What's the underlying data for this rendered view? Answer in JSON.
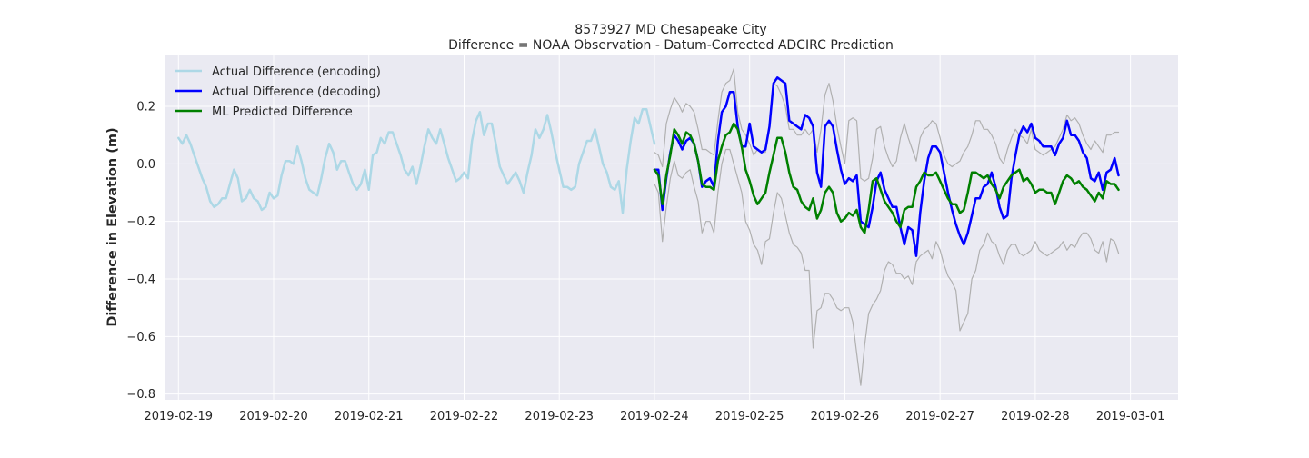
{
  "chart_data": {
    "type": "line",
    "title": "8573927 MD Chesapeake City",
    "subtitle": "Difference = NOAA Observation - Datum-Corrected ADCIRC Prediction",
    "xlabel": "",
    "ylabel": "Difference in Elevation (m)",
    "x_ticks": [
      "2019-02-19",
      "2019-02-20",
      "2019-02-21",
      "2019-02-22",
      "2019-02-23",
      "2019-02-24",
      "2019-02-25",
      "2019-02-26",
      "2019-02-27",
      "2019-02-28",
      "2019-03-01"
    ],
    "y_ticks": [
      "−0.8",
      "−0.6",
      "−0.4",
      "−0.2",
      "0.0",
      "0.2"
    ],
    "y_tick_values": [
      -0.8,
      -0.6,
      -0.4,
      -0.2,
      0.0,
      0.2
    ],
    "xlim": [
      "2019-02-18T20:30",
      "2019-03-01T12:00"
    ],
    "ylim": [
      -0.82,
      0.38
    ],
    "grid": true,
    "legend_position": "top-left",
    "colors": {
      "background": "#eaeaf2",
      "grid": "#ffffff",
      "encoding": "#add8e6",
      "decoding": "#0000ff",
      "predicted": "#008000",
      "bounds": "#b0b0b0"
    },
    "series": [
      {
        "name": "Actual Difference (encoding)",
        "color": "#add8e6",
        "x_start": "2019-02-19T00:00",
        "x_step_hours": 1,
        "values": [
          0.09,
          0.07,
          0.1,
          0.07,
          0.03,
          -0.01,
          -0.05,
          -0.08,
          -0.13,
          -0.15,
          -0.14,
          -0.12,
          -0.12,
          -0.07,
          -0.02,
          -0.05,
          -0.13,
          -0.12,
          -0.09,
          -0.12,
          -0.13,
          -0.16,
          -0.15,
          -0.1,
          -0.12,
          -0.11,
          -0.04,
          0.01,
          0.01,
          0.0,
          0.06,
          0.01,
          -0.05,
          -0.09,
          -0.1,
          -0.11,
          -0.05,
          0.02,
          0.07,
          0.04,
          -0.02,
          0.01,
          0.01,
          -0.03,
          -0.07,
          -0.09,
          -0.07,
          -0.02,
          -0.09,
          0.03,
          0.04,
          0.09,
          0.07,
          0.11,
          0.11,
          0.07,
          0.03,
          -0.02,
          -0.04,
          -0.01,
          -0.07,
          -0.01,
          0.06,
          0.12,
          0.09,
          0.07,
          0.12,
          0.07,
          0.02,
          -0.02,
          -0.06,
          -0.05,
          -0.03,
          -0.05,
          0.08,
          0.15,
          0.18,
          0.1,
          0.14,
          0.14,
          0.07,
          -0.01,
          -0.04,
          -0.07,
          -0.05,
          -0.03,
          -0.06,
          -0.1,
          -0.03,
          0.03,
          0.12,
          0.09,
          0.12,
          0.17,
          0.11,
          0.04,
          -0.02,
          -0.08,
          -0.08,
          -0.09,
          -0.08,
          0.0,
          0.04,
          0.08,
          0.08,
          0.12,
          0.06,
          0.0,
          -0.03,
          -0.08,
          -0.09,
          -0.06,
          -0.17,
          -0.02,
          0.08,
          0.16,
          0.14,
          0.19,
          0.19,
          0.13,
          0.07
        ]
      },
      {
        "name": "Actual Difference (decoding)",
        "color": "#0000ff",
        "x_start": "2019-02-24T00:00",
        "x_step_hours": 1,
        "values": [
          -0.02,
          -0.02,
          -0.16,
          -0.05,
          0.04,
          0.1,
          0.08,
          0.05,
          0.08,
          0.09,
          0.07,
          0.01,
          -0.08,
          -0.06,
          -0.05,
          -0.08,
          0.08,
          0.18,
          0.2,
          0.25,
          0.25,
          0.13,
          0.06,
          0.06,
          0.14,
          0.06,
          0.05,
          0.04,
          0.05,
          0.13,
          0.28,
          0.3,
          0.29,
          0.28,
          0.15,
          0.14,
          0.13,
          0.12,
          0.17,
          0.16,
          0.13,
          -0.03,
          -0.08,
          0.13,
          0.15,
          0.13,
          0.05,
          -0.02,
          -0.07,
          -0.05,
          -0.06,
          -0.04,
          -0.2,
          -0.21,
          -0.22,
          -0.15,
          -0.06,
          -0.03,
          -0.09,
          -0.12,
          -0.15,
          -0.15,
          -0.22,
          -0.28,
          -0.22,
          -0.23,
          -0.32,
          -0.17,
          -0.06,
          0.02,
          0.06,
          0.06,
          0.04,
          -0.03,
          -0.1,
          -0.16,
          -0.21,
          -0.25,
          -0.28,
          -0.24,
          -0.18,
          -0.12,
          -0.12,
          -0.08,
          -0.07,
          -0.03,
          -0.08,
          -0.15,
          -0.19,
          -0.18,
          -0.05,
          0.03,
          0.1,
          0.13,
          0.11,
          0.14,
          0.09,
          0.08,
          0.06,
          0.06,
          0.06,
          0.03,
          0.07,
          0.09,
          0.15,
          0.1,
          0.1,
          0.08,
          0.04,
          0.02,
          -0.05,
          -0.06,
          -0.03,
          -0.09,
          -0.03,
          -0.02,
          0.02,
          -0.04
        ]
      },
      {
        "name": "ML Predicted Difference",
        "color": "#008000",
        "x_start": "2019-02-24T00:00",
        "x_step_hours": 1,
        "values": [
          -0.02,
          -0.04,
          -0.14,
          -0.04,
          0.03,
          0.12,
          0.1,
          0.07,
          0.11,
          0.1,
          0.07,
          0.01,
          -0.07,
          -0.08,
          -0.08,
          -0.09,
          0.01,
          0.06,
          0.1,
          0.11,
          0.14,
          0.12,
          0.06,
          -0.02,
          -0.06,
          -0.11,
          -0.14,
          -0.12,
          -0.1,
          -0.03,
          0.03,
          0.09,
          0.09,
          0.04,
          -0.03,
          -0.08,
          -0.09,
          -0.13,
          -0.15,
          -0.16,
          -0.12,
          -0.19,
          -0.16,
          -0.1,
          -0.08,
          -0.1,
          -0.17,
          -0.2,
          -0.19,
          -0.17,
          -0.18,
          -0.16,
          -0.22,
          -0.24,
          -0.16,
          -0.06,
          -0.05,
          -0.09,
          -0.13,
          -0.15,
          -0.17,
          -0.2,
          -0.22,
          -0.16,
          -0.15,
          -0.15,
          -0.08,
          -0.06,
          -0.03,
          -0.04,
          -0.04,
          -0.03,
          -0.06,
          -0.09,
          -0.12,
          -0.14,
          -0.14,
          -0.17,
          -0.16,
          -0.1,
          -0.03,
          -0.03,
          -0.04,
          -0.05,
          -0.04,
          -0.07,
          -0.09,
          -0.12,
          -0.08,
          -0.06,
          -0.04,
          -0.03,
          -0.02,
          -0.06,
          -0.05,
          -0.07,
          -0.1,
          -0.09,
          -0.09,
          -0.1,
          -0.1,
          -0.14,
          -0.1,
          -0.06,
          -0.04,
          -0.05,
          -0.07,
          -0.06,
          -0.08,
          -0.09,
          -0.11,
          -0.13,
          -0.1,
          -0.12,
          -0.06,
          -0.07,
          -0.07,
          -0.09
        ]
      },
      {
        "name": "",
        "color": "#b0b0b0",
        "x_start": "2019-02-24T00:00",
        "x_step_hours": 1,
        "values": [
          0.04,
          0.03,
          -0.01,
          0.14,
          0.19,
          0.23,
          0.21,
          0.18,
          0.21,
          0.2,
          0.18,
          0.12,
          0.05,
          0.05,
          0.04,
          0.03,
          0.15,
          0.25,
          0.28,
          0.29,
          0.33,
          0.18,
          0.12,
          0.1,
          0.07,
          0.03,
          0.05,
          0.04,
          0.04,
          0.14,
          0.28,
          0.27,
          0.24,
          0.2,
          0.12,
          0.12,
          0.1,
          0.1,
          0.12,
          0.1,
          0.12,
          0.04,
          0.12,
          0.24,
          0.28,
          0.22,
          0.13,
          0.06,
          0.0,
          0.15,
          0.16,
          0.15,
          -0.05,
          -0.06,
          -0.05,
          0.02,
          0.12,
          0.13,
          0.06,
          0.02,
          -0.01,
          0.01,
          0.09,
          0.14,
          0.09,
          0.05,
          0.01,
          0.09,
          0.12,
          0.13,
          0.15,
          0.14,
          0.09,
          0.03,
          0.0,
          -0.01,
          0.0,
          0.01,
          0.04,
          0.06,
          0.1,
          0.15,
          0.15,
          0.12,
          0.12,
          0.1,
          0.07,
          0.02,
          0.0,
          0.05,
          0.09,
          0.12,
          0.1,
          0.09,
          0.07,
          0.12,
          0.05,
          0.04,
          0.03,
          0.04,
          0.05,
          0.06,
          0.09,
          0.12,
          0.17,
          0.15,
          0.16,
          0.14,
          0.1,
          0.07,
          0.05,
          0.08,
          0.06,
          0.04,
          0.1,
          0.1,
          0.11,
          0.11
        ]
      },
      {
        "name": "",
        "color": "#b0b0b0",
        "x_start": "2019-02-24T00:00",
        "x_step_hours": 1,
        "values": [
          -0.07,
          -0.1,
          -0.27,
          -0.15,
          -0.05,
          0.01,
          -0.04,
          -0.05,
          -0.03,
          -0.02,
          -0.08,
          -0.13,
          -0.24,
          -0.2,
          -0.2,
          -0.24,
          -0.1,
          0.0,
          0.05,
          0.05,
          0.0,
          -0.05,
          -0.1,
          -0.2,
          -0.23,
          -0.28,
          -0.3,
          -0.35,
          -0.27,
          -0.26,
          -0.17,
          -0.1,
          -0.12,
          -0.18,
          -0.24,
          -0.28,
          -0.29,
          -0.31,
          -0.37,
          -0.37,
          -0.64,
          -0.51,
          -0.5,
          -0.45,
          -0.45,
          -0.47,
          -0.5,
          -0.51,
          -0.5,
          -0.5,
          -0.55,
          -0.66,
          -0.77,
          -0.63,
          -0.52,
          -0.49,
          -0.47,
          -0.44,
          -0.37,
          -0.34,
          -0.35,
          -0.38,
          -0.38,
          -0.4,
          -0.39,
          -0.42,
          -0.34,
          -0.32,
          -0.31,
          -0.3,
          -0.33,
          -0.27,
          -0.3,
          -0.35,
          -0.39,
          -0.41,
          -0.44,
          -0.58,
          -0.55,
          -0.52,
          -0.4,
          -0.37,
          -0.3,
          -0.28,
          -0.24,
          -0.27,
          -0.28,
          -0.32,
          -0.35,
          -0.3,
          -0.28,
          -0.28,
          -0.31,
          -0.32,
          -0.31,
          -0.3,
          -0.27,
          -0.3,
          -0.31,
          -0.32,
          -0.31,
          -0.3,
          -0.29,
          -0.27,
          -0.3,
          -0.28,
          -0.29,
          -0.26,
          -0.24,
          -0.24,
          -0.26,
          -0.3,
          -0.31,
          -0.27,
          -0.34,
          -0.26,
          -0.27,
          -0.31
        ]
      }
    ]
  }
}
